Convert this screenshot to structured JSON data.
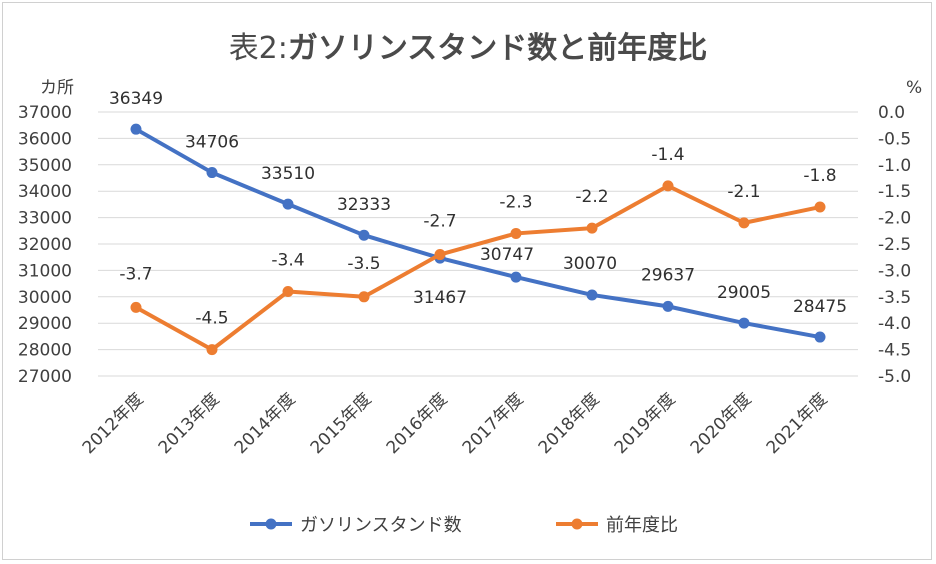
{
  "chart_data": {
    "type": "line",
    "title_prefix": "表2:",
    "title_main": "ガソリンスタンド数と前年度比",
    "left_unit": "カ所",
    "right_unit": "%",
    "categories": [
      "2012年度",
      "2013年度",
      "2014年度",
      "2015年度",
      "2016年度",
      "2017年度",
      "2018年度",
      "2019年度",
      "2020年度",
      "2021年度"
    ],
    "left_axis": {
      "min": 27000,
      "max": 37000,
      "ticks": [
        "37000",
        "36000",
        "35000",
        "34000",
        "33000",
        "32000",
        "31000",
        "30000",
        "29000",
        "28000",
        "27000"
      ]
    },
    "right_axis": {
      "min": -5.0,
      "max": 0.0,
      "ticks": [
        "0.0",
        "-0.5",
        "-1.0",
        "-1.5",
        "-2.0",
        "-2.5",
        "-3.0",
        "-3.5",
        "-4.0",
        "-4.5",
        "-5.0"
      ]
    },
    "series": [
      {
        "name": "ガソリンスタンド数",
        "axis": "left",
        "color": "#4472c4",
        "values": [
          36349,
          34706,
          33510,
          32333,
          31467,
          30747,
          30070,
          29637,
          29005,
          28475
        ],
        "labels": [
          "36349",
          "34706",
          "33510",
          "32333",
          "31467",
          "30747",
          "30070",
          "29637",
          "29005",
          "28475"
        ]
      },
      {
        "name": "前年度比",
        "axis": "right",
        "color": "#ed7d31",
        "values": [
          -3.7,
          -4.5,
          -3.4,
          -3.5,
          -2.7,
          -2.3,
          -2.2,
          -1.4,
          -2.1,
          -1.8
        ],
        "labels": [
          "-3.7",
          "-4.5",
          "-3.4",
          "-3.5",
          "-2.7",
          "-2.3",
          "-2.2",
          "-1.4",
          "-2.1",
          "-1.8"
        ]
      }
    ],
    "grid": true,
    "legend_position": "bottom"
  }
}
